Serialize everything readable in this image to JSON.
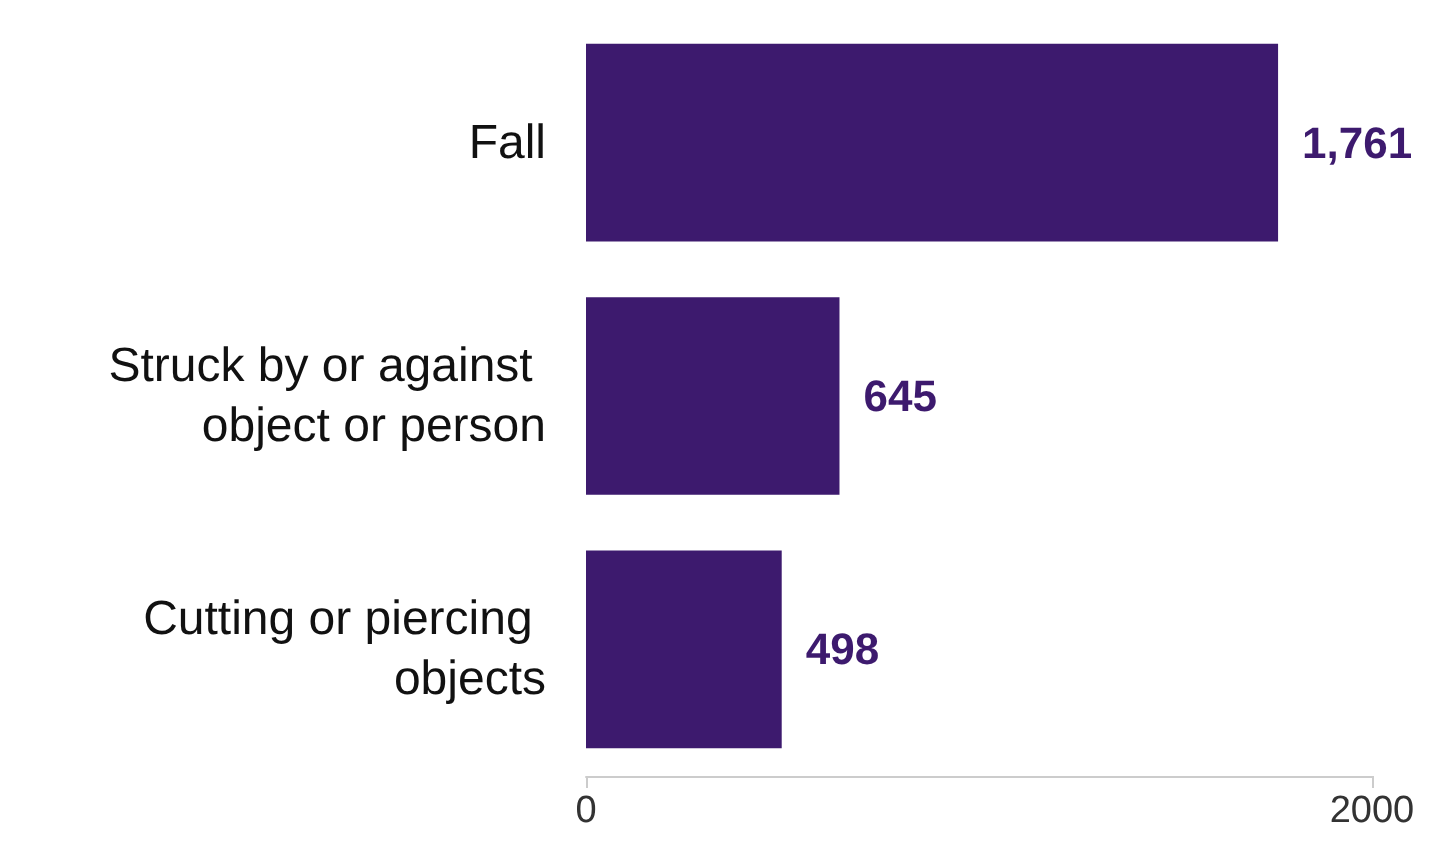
{
  "chart_data": {
    "type": "bar",
    "orientation": "horizontal",
    "categories": [
      "Fall",
      "Struck by or against object or person",
      "Cutting or piercing objects"
    ],
    "values": [
      1761,
      645,
      498
    ],
    "value_labels": [
      "1,761",
      "645",
      "498"
    ],
    "color": "#3d1a6e",
    "xlim": [
      0,
      2000
    ],
    "xticks": [
      0,
      2000
    ],
    "grid": false
  }
}
